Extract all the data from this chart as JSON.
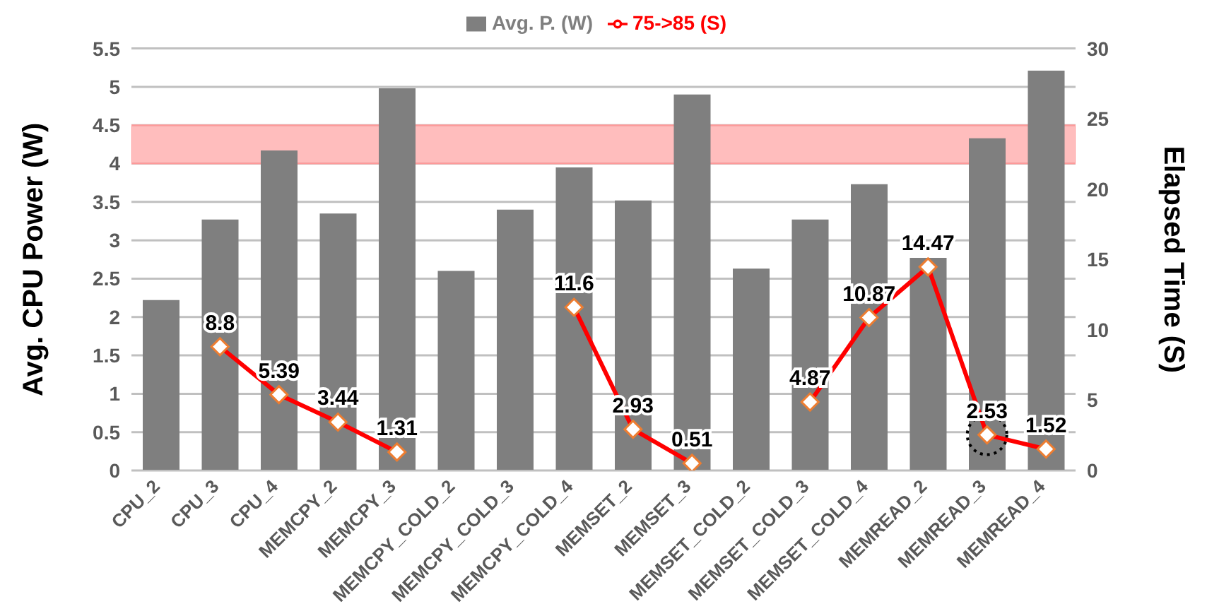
{
  "chart_data": {
    "type": "bar",
    "categories": [
      "CPU_2",
      "CPU_3",
      "CPU_4",
      "MEMCPY_2",
      "MEMCPY_3",
      "MEMCPY_COLD_2",
      "MEMCPY_COLD_3",
      "MEMCPY_COLD_4",
      "MEMSET_2",
      "MEMSET_3",
      "MEMSET_COLD_2",
      "MEMSET_COLD_3",
      "MEMSET_COLD_4",
      "MEMREAD_2",
      "MEMREAD_3",
      "MEMREAD_4"
    ],
    "series": [
      {
        "name": "Avg. P. (W)",
        "color": "#7f7f7f",
        "values": [
          2.22,
          3.27,
          4.17,
          3.35,
          4.98,
          2.6,
          3.4,
          3.95,
          3.52,
          4.9,
          2.63,
          3.27,
          3.73,
          2.77,
          4.33,
          5.21
        ]
      },
      {
        "name": "75->85 (S)",
        "type": "line",
        "axis": "y2",
        "color": "#ff0000",
        "marker": "diamond",
        "values": [
          null,
          8.8,
          5.39,
          3.44,
          1.31,
          null,
          null,
          11.6,
          2.93,
          0.51,
          null,
          4.87,
          10.87,
          14.47,
          2.53,
          1.52
        ],
        "value_labels": [
          null,
          "8.8",
          "5.39",
          "3.44",
          "1.31",
          null,
          null,
          "11.6",
          "2.93",
          "0.51",
          null,
          "4.87",
          "10.87",
          "14.47",
          "2.53",
          "1.52"
        ]
      }
    ],
    "ylabel": "Avg. CPU Power (W)",
    "y2label": "Elapsed Time (S)",
    "ylim": [
      0,
      5.5
    ],
    "yticks": [
      0,
      0.5,
      1,
      1.5,
      2,
      2.5,
      3,
      3.5,
      4,
      4.5,
      5,
      5.5
    ],
    "y2lim": [
      0,
      30
    ],
    "y2ticks": [
      0,
      5,
      10,
      15,
      20,
      25,
      30
    ],
    "bands": [
      {
        "axis": "y",
        "from": 4,
        "to": 4.5,
        "color": "#ff9999"
      }
    ],
    "grid": "y",
    "legend": "top"
  }
}
